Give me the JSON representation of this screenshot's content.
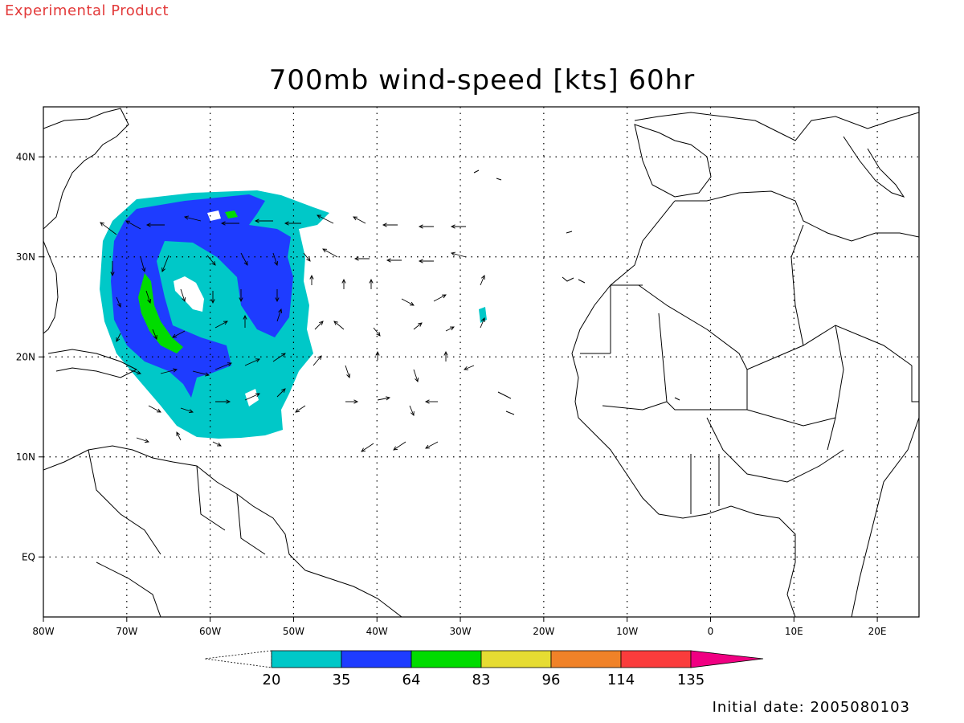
{
  "header": {
    "experimental_label": "Experimental Product",
    "title": "700mb wind-speed [kts] 60hr"
  },
  "footer": {
    "initial_date": "Initial date: 2005080103"
  },
  "map": {
    "lon_range": [
      -80,
      25
    ],
    "lat_range": [
      -6,
      45
    ],
    "lon_ticks": [
      "80W",
      "70W",
      "60W",
      "50W",
      "40W",
      "30W",
      "20W",
      "10W",
      "0",
      "10E",
      "20E"
    ],
    "lat_ticks": [
      "EQ",
      "10N",
      "20N",
      "30N",
      "40N"
    ],
    "lat_tick_values": [
      0,
      10,
      20,
      30,
      40
    ],
    "grid_lon_values": [
      -70,
      -60,
      -50,
      -40,
      -30,
      -20,
      -10,
      0,
      10,
      20
    ],
    "grid_lat_values": [
      0,
      10,
      20,
      30,
      40
    ],
    "grid_lines": "dotted"
  },
  "legend": {
    "values": [
      "20",
      "35",
      "64",
      "83",
      "96",
      "114",
      "135"
    ],
    "colors": [
      "#00c8c8",
      "#1e3cff",
      "#00dc00",
      "#e6dc32",
      "#f08228",
      "#fa3c3c",
      "#f00082"
    ]
  },
  "wind_field": {
    "min_threshold": 20,
    "color_20_35": "#00c8c8",
    "color_35_64": "#1e3cff",
    "color_64_83": "#00dc00"
  }
}
